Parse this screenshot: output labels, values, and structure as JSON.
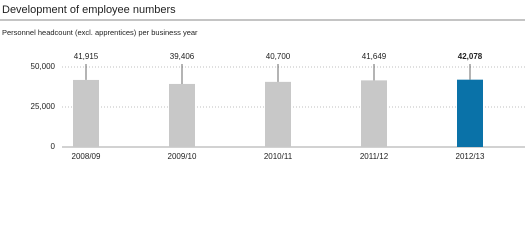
{
  "chart_data": {
    "type": "bar",
    "title": "Development of employee numbers",
    "subtitle": "Personnel headcount (excl. apprentices) per business year",
    "categories": [
      "2008/09",
      "2009/10",
      "2010/11",
      "2011/12",
      "2012/13"
    ],
    "values": [
      41915,
      39406,
      40700,
      41649,
      42078
    ],
    "value_labels": [
      "41,915",
      "39,406",
      "40,700",
      "41,649",
      "42,078"
    ],
    "colors": [
      "#c8c8c8",
      "#c8c8c8",
      "#c8c8c8",
      "#c8c8c8",
      "#0a72a8"
    ],
    "highlight_index": 4,
    "ylim": [
      0,
      50000
    ],
    "yticks": [
      0,
      {
        "value": 25000,
        "label": "25,000"
      },
      {
        "value": 50000,
        "label": "50,000"
      }
    ],
    "grid": true
  }
}
